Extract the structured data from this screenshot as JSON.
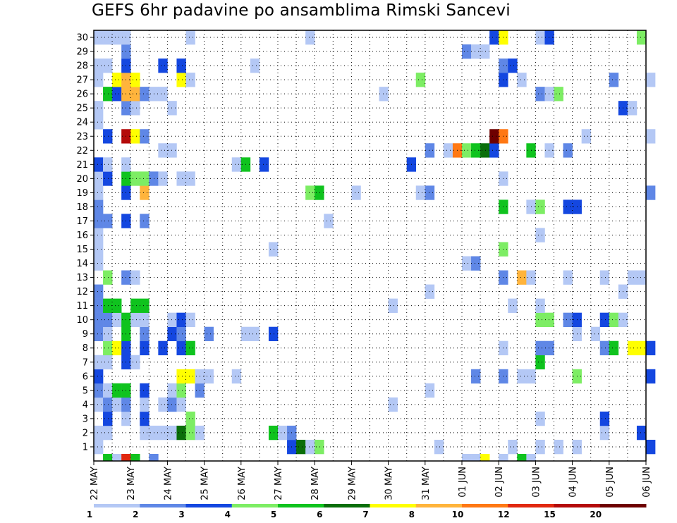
{
  "title": "GEFS 6hr padavine po ansamblima Rimski Sancevi",
  "chart_data": {
    "type": "heatmap",
    "title": "GEFS 6hr padavine po ansamblima Rimski Sancevi",
    "xlabel": "",
    "ylabel": "",
    "y_ticks": [
      1,
      2,
      3,
      4,
      5,
      6,
      7,
      8,
      9,
      10,
      11,
      12,
      13,
      14,
      15,
      16,
      17,
      18,
      19,
      20,
      21,
      22,
      23,
      24,
      25,
      26,
      27,
      28,
      29,
      30
    ],
    "x_ticks": [
      "22 MAY",
      "23 MAY",
      "24 MAY",
      "25 MAY",
      "26 MAY",
      "27 MAY",
      "28 MAY",
      "29 MAY",
      "30 MAY",
      "31 MAY",
      "01 JUN",
      "02 JUN",
      "03 JUN",
      "04 JUN",
      "05 JUN",
      "06 JUN"
    ],
    "time_steps": 61,
    "steps_per_day": 4,
    "grid": true,
    "colorbar": {
      "labels": [
        "1",
        "2",
        "3",
        "4",
        "5",
        "6",
        "7",
        "8",
        "10",
        "12",
        "15",
        "20"
      ],
      "colors": [
        "#b4c8f5",
        "#5f87e6",
        "#1447e0",
        "#7ded64",
        "#0fc31e",
        "#0a6e0a",
        "#ffff00",
        "#ffb43c",
        "#ff7814",
        "#e1280f",
        "#b40a0a",
        "#6e0000"
      ]
    },
    "members": [
      {
        "member": 1,
        "cells": [
          [
            0,
            1
          ],
          [
            21,
            3
          ],
          [
            22,
            6
          ],
          [
            23,
            1
          ],
          [
            24,
            4
          ],
          [
            37,
            1
          ],
          [
            45,
            1
          ],
          [
            48,
            1
          ],
          [
            50,
            1
          ],
          [
            52,
            1
          ],
          [
            60,
            3
          ]
        ]
      },
      {
        "member": 2,
        "cells": [
          [
            0,
            1
          ],
          [
            1,
            1
          ],
          [
            5,
            1
          ],
          [
            6,
            1
          ],
          [
            7,
            1
          ],
          [
            8,
            1
          ],
          [
            9,
            6
          ],
          [
            10,
            4
          ],
          [
            11,
            1
          ],
          [
            19,
            5
          ],
          [
            20,
            1
          ],
          [
            21,
            2
          ],
          [
            55,
            1
          ],
          [
            59,
            3
          ]
        ]
      },
      {
        "member": 3,
        "cells": [
          [
            1,
            3
          ],
          [
            3,
            1
          ],
          [
            5,
            3
          ],
          [
            10,
            4
          ],
          [
            48,
            1
          ],
          [
            55,
            3
          ]
        ]
      },
      {
        "member": 4,
        "cells": [
          [
            0,
            1
          ],
          [
            1,
            2
          ],
          [
            2,
            1
          ],
          [
            3,
            2
          ],
          [
            5,
            1
          ],
          [
            7,
            1
          ],
          [
            8,
            2
          ],
          [
            9,
            1
          ],
          [
            32,
            1
          ]
        ]
      },
      {
        "member": 5,
        "cells": [
          [
            0,
            2
          ],
          [
            1,
            1
          ],
          [
            2,
            5
          ],
          [
            3,
            5
          ],
          [
            5,
            3
          ],
          [
            8,
            1
          ],
          [
            9,
            4
          ],
          [
            11,
            2
          ],
          [
            36,
            1
          ]
        ]
      },
      {
        "member": 6,
        "cells": [
          [
            0,
            3
          ],
          [
            9,
            7
          ],
          [
            10,
            7
          ],
          [
            11,
            1
          ],
          [
            12,
            1
          ],
          [
            15,
            1
          ],
          [
            41,
            2
          ],
          [
            44,
            2
          ],
          [
            46,
            1
          ],
          [
            47,
            1
          ],
          [
            52,
            4
          ],
          [
            60,
            3
          ]
        ]
      },
      {
        "member": 7,
        "cells": [
          [
            0,
            1
          ],
          [
            1,
            1
          ],
          [
            3,
            3
          ],
          [
            4,
            1
          ],
          [
            48,
            5
          ]
        ]
      },
      {
        "member": 8,
        "cells": [
          [
            1,
            4
          ],
          [
            2,
            7
          ],
          [
            3,
            3
          ],
          [
            5,
            3
          ],
          [
            7,
            3
          ],
          [
            9,
            3
          ],
          [
            10,
            5
          ],
          [
            44,
            1
          ],
          [
            48,
            2
          ],
          [
            49,
            2
          ],
          [
            55,
            2
          ],
          [
            56,
            5
          ],
          [
            58,
            7
          ],
          [
            59,
            7
          ],
          [
            60,
            3
          ]
        ]
      },
      {
        "member": 9,
        "cells": [
          [
            0,
            2
          ],
          [
            1,
            1
          ],
          [
            3,
            5
          ],
          [
            5,
            2
          ],
          [
            8,
            3
          ],
          [
            9,
            2
          ],
          [
            12,
            2
          ],
          [
            16,
            1
          ],
          [
            17,
            1
          ],
          [
            19,
            3
          ],
          [
            52,
            1
          ],
          [
            54,
            1
          ]
        ]
      },
      {
        "member": 10,
        "cells": [
          [
            0,
            2
          ],
          [
            1,
            2
          ],
          [
            2,
            1
          ],
          [
            3,
            5
          ],
          [
            4,
            1
          ],
          [
            5,
            1
          ],
          [
            8,
            1
          ],
          [
            9,
            3
          ],
          [
            10,
            1
          ],
          [
            48,
            4
          ],
          [
            49,
            4
          ],
          [
            51,
            2
          ],
          [
            52,
            3
          ],
          [
            55,
            3
          ],
          [
            56,
            4
          ],
          [
            57,
            1
          ]
        ]
      },
      {
        "member": 11,
        "cells": [
          [
            0,
            2
          ],
          [
            1,
            5
          ],
          [
            2,
            5
          ],
          [
            4,
            5
          ],
          [
            5,
            5
          ],
          [
            32,
            1
          ],
          [
            45,
            1
          ],
          [
            48,
            1
          ]
        ]
      },
      {
        "member": 12,
        "cells": [
          [
            0,
            2
          ],
          [
            36,
            1
          ],
          [
            57,
            1
          ]
        ]
      },
      {
        "member": 13,
        "cells": [
          [
            1,
            4
          ],
          [
            3,
            2
          ],
          [
            4,
            1
          ],
          [
            44,
            2
          ],
          [
            46,
            8
          ],
          [
            47,
            1
          ],
          [
            51,
            1
          ],
          [
            55,
            1
          ],
          [
            58,
            1
          ],
          [
            59,
            1
          ]
        ]
      },
      {
        "member": 14,
        "cells": [
          [
            0,
            1
          ],
          [
            40,
            1
          ],
          [
            41,
            2
          ]
        ]
      },
      {
        "member": 15,
        "cells": [
          [
            0,
            1
          ],
          [
            19,
            1
          ],
          [
            44,
            4
          ]
        ]
      },
      {
        "member": 16,
        "cells": [
          [
            0,
            1
          ],
          [
            48,
            1
          ]
        ]
      },
      {
        "member": 17,
        "cells": [
          [
            0,
            2
          ],
          [
            1,
            2
          ],
          [
            3,
            3
          ],
          [
            5,
            2
          ],
          [
            25,
            1
          ]
        ]
      },
      {
        "member": 18,
        "cells": [
          [
            0,
            2
          ],
          [
            44,
            5
          ],
          [
            47,
            1
          ],
          [
            48,
            4
          ],
          [
            51,
            3
          ],
          [
            52,
            3
          ]
        ]
      },
      {
        "member": 19,
        "cells": [
          [
            0,
            1
          ],
          [
            3,
            3
          ],
          [
            5,
            8
          ],
          [
            23,
            4
          ],
          [
            24,
            5
          ],
          [
            28,
            1
          ],
          [
            35,
            1
          ],
          [
            36,
            2
          ],
          [
            60,
            2
          ]
        ]
      },
      {
        "member": 20,
        "cells": [
          [
            0,
            1
          ],
          [
            1,
            3
          ],
          [
            3,
            5
          ],
          [
            4,
            4
          ],
          [
            5,
            4
          ],
          [
            6,
            2
          ],
          [
            7,
            1
          ],
          [
            9,
            1
          ],
          [
            10,
            1
          ],
          [
            44,
            1
          ]
        ]
      },
      {
        "member": 21,
        "cells": [
          [
            0,
            3
          ],
          [
            1,
            1
          ],
          [
            3,
            1
          ],
          [
            15,
            1
          ],
          [
            16,
            5
          ],
          [
            18,
            3
          ],
          [
            34,
            3
          ]
        ]
      },
      {
        "member": 22,
        "cells": [
          [
            7,
            1
          ],
          [
            8,
            1
          ],
          [
            36,
            2
          ],
          [
            38,
            1
          ],
          [
            39,
            9
          ],
          [
            40,
            4
          ],
          [
            41,
            5
          ],
          [
            42,
            6
          ],
          [
            43,
            3
          ],
          [
            47,
            5
          ],
          [
            49,
            1
          ],
          [
            51,
            2
          ]
        ]
      },
      {
        "member": 23,
        "cells": [
          [
            1,
            3
          ],
          [
            3,
            11
          ],
          [
            4,
            7
          ],
          [
            5,
            2
          ],
          [
            43,
            12
          ],
          [
            44,
            9
          ],
          [
            53,
            1
          ],
          [
            60,
            1
          ]
        ]
      },
      {
        "member": 24,
        "cells": [
          [
            0,
            1
          ]
        ]
      },
      {
        "member": 25,
        "cells": [
          [
            0,
            1
          ],
          [
            3,
            2
          ],
          [
            4,
            1
          ],
          [
            8,
            1
          ],
          [
            57,
            3
          ],
          [
            58,
            1
          ]
        ]
      },
      {
        "member": 26,
        "cells": [
          [
            1,
            5
          ],
          [
            2,
            3
          ],
          [
            3,
            8
          ],
          [
            4,
            8
          ],
          [
            5,
            2
          ],
          [
            6,
            1
          ],
          [
            7,
            1
          ],
          [
            31,
            1
          ],
          [
            48,
            2
          ],
          [
            49,
            1
          ],
          [
            50,
            4
          ]
        ]
      },
      {
        "member": 27,
        "cells": [
          [
            0,
            1
          ],
          [
            2,
            7
          ],
          [
            3,
            8
          ],
          [
            4,
            7
          ],
          [
            9,
            7
          ],
          [
            10,
            1
          ],
          [
            35,
            4
          ],
          [
            44,
            3
          ],
          [
            46,
            1
          ],
          [
            56,
            2
          ],
          [
            60,
            1
          ]
        ]
      },
      {
        "member": 28,
        "cells": [
          [
            0,
            1
          ],
          [
            1,
            1
          ],
          [
            3,
            3
          ],
          [
            7,
            3
          ],
          [
            9,
            3
          ],
          [
            17,
            1
          ],
          [
            44,
            2
          ],
          [
            45,
            3
          ]
        ]
      },
      {
        "member": 29,
        "cells": [
          [
            3,
            2
          ],
          [
            40,
            2
          ],
          [
            41,
            1
          ],
          [
            42,
            1
          ]
        ]
      },
      {
        "member": 30,
        "cells": [
          [
            0,
            1
          ],
          [
            1,
            1
          ],
          [
            2,
            1
          ],
          [
            3,
            1
          ],
          [
            10,
            1
          ],
          [
            23,
            1
          ],
          [
            43,
            3
          ],
          [
            44,
            7
          ],
          [
            48,
            1
          ],
          [
            49,
            3
          ],
          [
            59,
            4
          ]
        ]
      }
    ],
    "bottom_row_cells": [
      [
        1,
        5
      ],
      [
        2,
        1
      ],
      [
        3,
        10
      ],
      [
        4,
        5
      ],
      [
        6,
        2
      ],
      [
        40,
        1
      ],
      [
        41,
        1
      ],
      [
        42,
        7
      ],
      [
        44,
        1
      ],
      [
        46,
        5
      ],
      [
        47,
        1
      ]
    ]
  }
}
